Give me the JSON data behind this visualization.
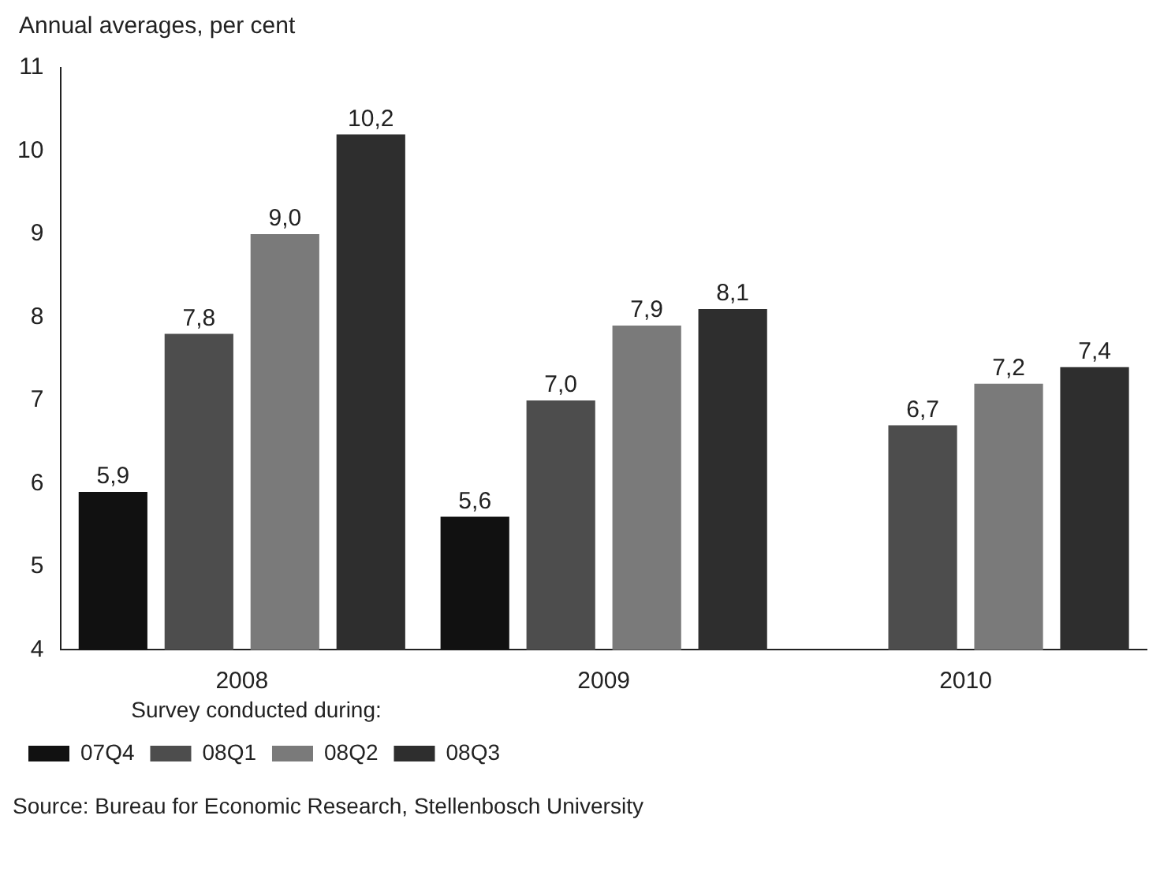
{
  "chart_data": {
    "type": "bar",
    "ylabel": "Annual averages, per cent",
    "categories": [
      "2008",
      "2009",
      "2010"
    ],
    "series": [
      {
        "name": "07Q4",
        "color": "#111111",
        "values": [
          5.9,
          5.6,
          null
        ],
        "value_labels": [
          "5,9",
          "5,6",
          null
        ]
      },
      {
        "name": "08Q1",
        "color": "#4d4d4d",
        "values": [
          7.8,
          7.0,
          6.7
        ],
        "value_labels": [
          "7,8",
          "7,0",
          "6,7"
        ]
      },
      {
        "name": "08Q2",
        "color": "#7a7a7a",
        "values": [
          9.0,
          7.9,
          7.2
        ],
        "value_labels": [
          "9,0",
          "7,9",
          "7,2"
        ]
      },
      {
        "name": "08Q3",
        "color": "#2e2e2e",
        "values": [
          10.2,
          8.1,
          7.4
        ],
        "value_labels": [
          "10,2",
          "8,1",
          "7,4"
        ]
      }
    ],
    "ylim": [
      4,
      11
    ],
    "yticks": [
      4,
      5,
      6,
      7,
      8,
      9,
      10,
      11
    ],
    "grid": false,
    "legend": "bottom",
    "legend_title": "Survey conducted during:",
    "annotations": [
      "Source: Bureau for Economic Research, Stellenbosch University"
    ]
  }
}
